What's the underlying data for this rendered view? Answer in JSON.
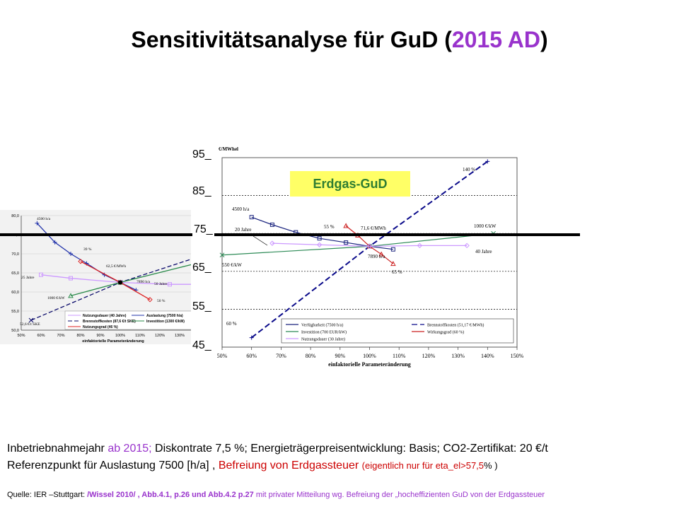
{
  "title": {
    "main": "Sensitivitätsanalyse für GuD  (",
    "year": "2015 AD",
    "close": ")"
  },
  "badge": "Erdgas-GuD",
  "overlay_axis": [
    "95_",
    "85_",
    "75_",
    "65_",
    "55_",
    "45_"
  ],
  "notes": {
    "line1_a": "Inbetriebnahmejahr ",
    "line1_b": "ab 2015;",
    "line1_c": "  Diskontrate 7,5 %; Energieträgerpreisentwicklung: Basis;  CO2-Zertifikat: 20 €/t",
    "line2_a": " Referenzpunkt für Auslastung 7500 [h/a]  , ",
    "line2_b": "Befreiung von Erdgassteuer ",
    "line2_c": "(eigentlich nur für eta_el>57,5",
    "line2_d": "% )"
  },
  "source": {
    "a": "Quelle:  IER –Stuttgart: ",
    "b": "/Wissel 2010/  , Abb.4.1, p.26  und Abb.4.2 p.27",
    "c": " mit privater Mitteilung wg. Befreiung der „hocheffizienten GuD von der Erdgassteuer"
  },
  "colors": {
    "accent": "#9933cc",
    "badge_bg": "#ffff66",
    "badge_text": "#2e7d32",
    "red": "#cc0000"
  },
  "chart_data": [
    {
      "type": "line",
      "title": "",
      "xlabel": "einfaktorielle Parameteränderung",
      "ylabel": "",
      "xlim": [
        50,
        150
      ],
      "ylim": [
        50,
        80
      ],
      "x_ticks": [
        "50%",
        "60%",
        "70%",
        "80%",
        "90%",
        "100%",
        "110%",
        "120%",
        "130%",
        "140%",
        "150%"
      ],
      "y_ticks": [
        "50,0",
        "55,0",
        "60,0",
        "65,0",
        "70,0",
        "75,0",
        "80,0"
      ],
      "series": [
        {
          "name": "Nutzungsdauer (40 Jahre)",
          "color": "#cc99ff",
          "dash": "",
          "x": [
            60,
            75,
            100,
            125,
            140
          ],
          "y": [
            64.5,
            63.6,
            62.5,
            62.0,
            62.0
          ]
        },
        {
          "name": "Auslastung (7500 h/a)",
          "color": "#2233aa",
          "dash": "",
          "x": [
            58,
            67,
            75,
            83,
            92,
            100,
            108
          ],
          "y": [
            78,
            73,
            70,
            67.5,
            64.5,
            62.5,
            60.5
          ]
        },
        {
          "name": "Brennstoffkosten (87,6 €/t SKE)",
          "color": "#0a0a6a",
          "dash": "6,3",
          "x": [
            55,
            100,
            150
          ],
          "y": [
            52.6,
            62.5,
            71
          ]
        },
        {
          "name": "Investition (1300 €/kW)",
          "color": "#2a8a4a",
          "dash": "",
          "x": [
            75,
            100,
            150
          ],
          "y": [
            59,
            62.5,
            69
          ]
        },
        {
          "name": "Nutzungsgrad (46 %)",
          "color": "#dd2222",
          "dash": "",
          "x": [
            80,
            100,
            115
          ],
          "y": [
            68,
            62.5,
            58
          ]
        }
      ],
      "annotations": [
        "4500 h/a",
        "39 %",
        "62,5 €/MWh",
        "7890 h/a",
        "25 Jahre",
        "50 Jahre",
        "1000 €/kW",
        "52,6 €/t SKE",
        "50 %"
      ],
      "legend_position": "bottom-right"
    },
    {
      "type": "line",
      "title": "",
      "xlabel": "einfaktorielle Parameteränderung",
      "ylabel": "€/MWhel",
      "xlim": [
        50,
        150
      ],
      "ylim": [
        45,
        95
      ],
      "x_ticks": [
        "50%",
        "60%",
        "70%",
        "80%",
        "90%",
        "100%",
        "110%",
        "120%",
        "130%",
        "140%",
        "150%"
      ],
      "series": [
        {
          "name": "Verfügbarkeit (7500 h/a)",
          "color": "#1a237e",
          "dash": "",
          "x": [
            60,
            67,
            75,
            83,
            92,
            100,
            108
          ],
          "y": [
            79.3,
            77.3,
            75.3,
            73.7,
            72.6,
            71.6,
            70.8
          ]
        },
        {
          "name": "Brennstoffkosten (51,17 €/MWh)",
          "color": "#0a0a8a",
          "dash": "8,4",
          "x": [
            60,
            100,
            140
          ],
          "y": [
            47.5,
            71.6,
            94
          ]
        },
        {
          "name": "Investition (700 EUR/kW)",
          "color": "#2e8b57",
          "dash": "",
          "x": [
            50,
            100,
            142
          ],
          "y": [
            69.3,
            71.6,
            75
          ]
        },
        {
          "name": "Wirkungsgrad (60 %)",
          "color": "#cc2222",
          "dash": "",
          "x": [
            92,
            96,
            100,
            104,
            108
          ],
          "y": [
            77,
            74.5,
            71.6,
            69.5,
            67
          ]
        },
        {
          "name": "Nutzungsdauer (30 Jahre)",
          "color": "#cc99ff",
          "dash": "",
          "x": [
            67,
            83,
            100,
            117,
            133
          ],
          "y": [
            72.4,
            72.0,
            71.6,
            71.8,
            71.8
          ]
        }
      ],
      "annotations": [
        "4500 h/a",
        "20 Jahre",
        "55 %",
        "71,6 €/MWh",
        "140 %",
        "1000 €/kW",
        "40 Jahre",
        "550 €/kW",
        "7890 h/a",
        "65 %",
        "60 %"
      ],
      "legend_position": "bottom-right"
    }
  ]
}
